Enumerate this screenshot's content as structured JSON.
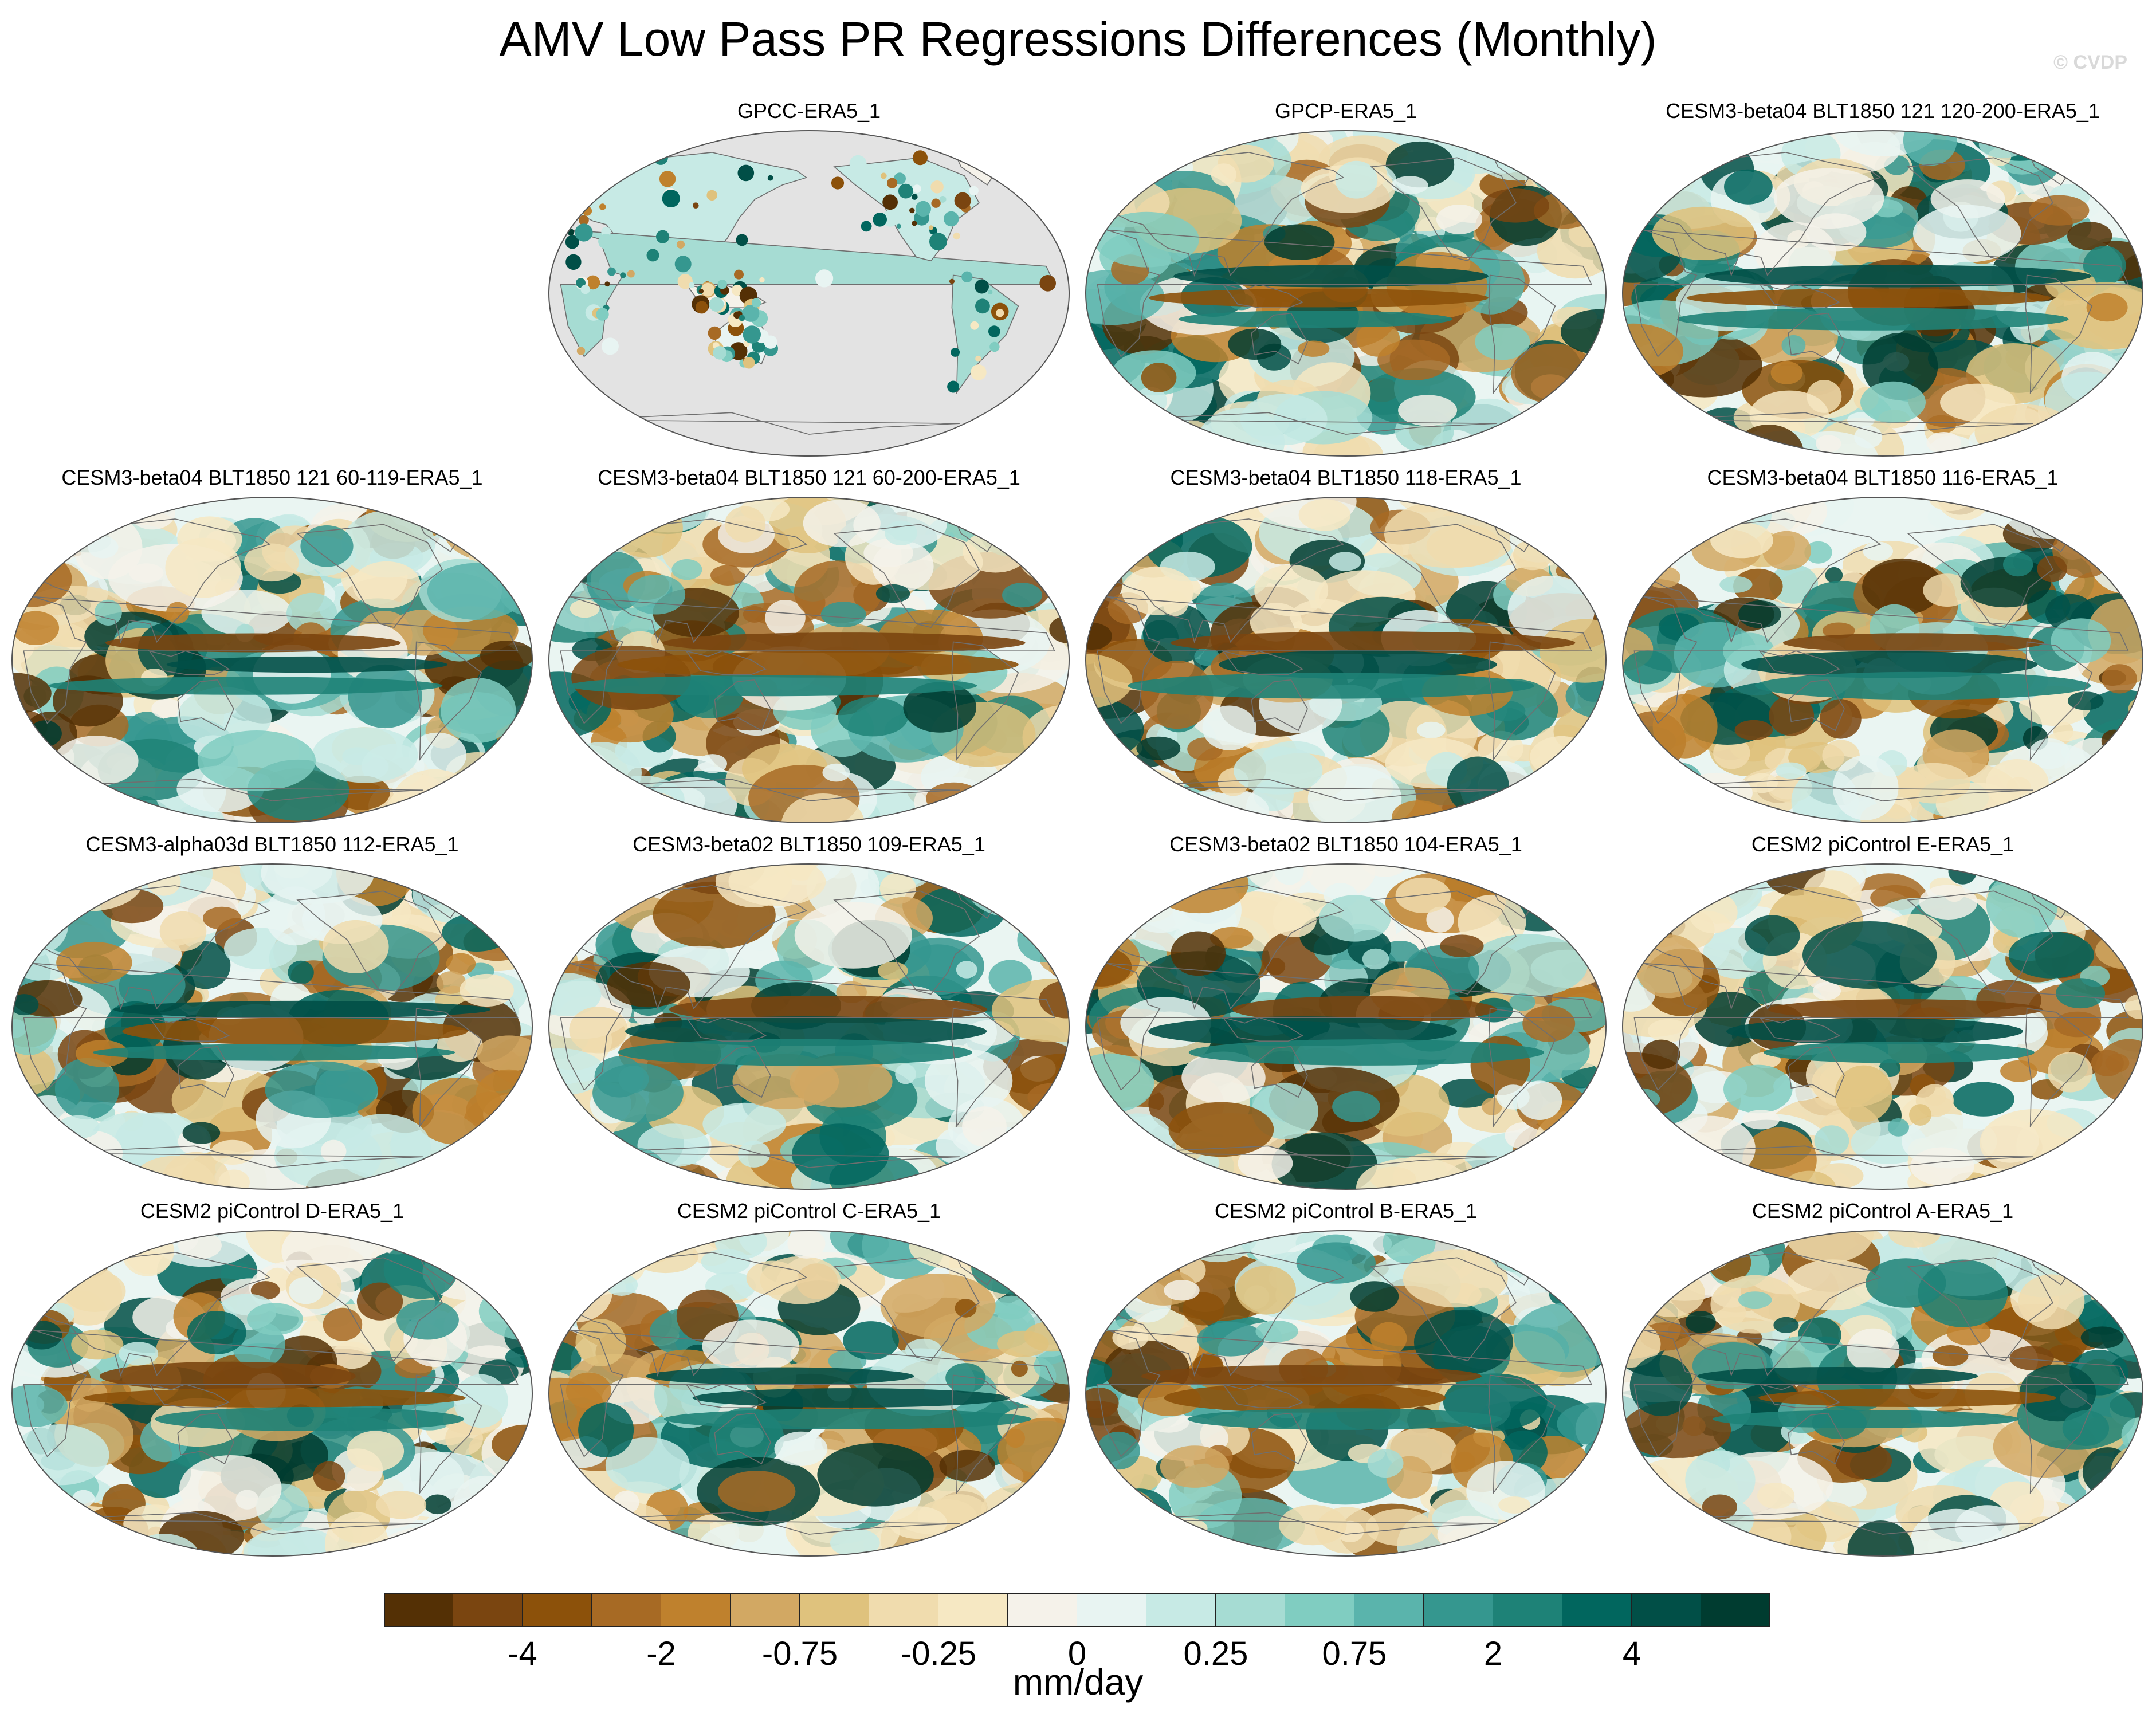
{
  "title": "AMV Low Pass PR Regressions Differences (Monthly)",
  "watermark": "© CVDP",
  "units": "mm/day",
  "colorbar": {
    "colors": [
      "#543005",
      "#7a4510",
      "#8c510a",
      "#a76a24",
      "#bf812d",
      "#d2a863",
      "#dfc27d",
      "#f0dcae",
      "#f6e8c3",
      "#f5f2ea",
      "#e8f4f2",
      "#c7eae5",
      "#a6dcd3",
      "#80cdc1",
      "#5ab4ac",
      "#35978f",
      "#1e8277",
      "#01665e",
      "#014f47",
      "#003c30"
    ],
    "tick_labels": [
      "-4",
      "-2",
      "-0.75",
      "-0.25",
      "0",
      "0.25",
      "0.75",
      "2",
      "4"
    ]
  },
  "chart_data": {
    "type": "heatmap",
    "projection": "Robinson (global, Pacific-centered)",
    "variable": "PR regression difference",
    "units": "mm/day",
    "contour_levels": [
      -5,
      -4,
      -3,
      -2,
      -1,
      -0.75,
      -0.5,
      -0.25,
      -0.1,
      0,
      0.1,
      0.25,
      0.5,
      0.75,
      1,
      2,
      3,
      4,
      5
    ],
    "panels": [
      {
        "label": "GPCC-ERA5_1",
        "land_only": true
      },
      {
        "label": "GPCP-ERA5_1",
        "land_only": false
      },
      {
        "label": "CESM3-beta04 BLT1850 121 120-200-ERA5_1",
        "land_only": false
      },
      {
        "label": "CESM3-beta04 BLT1850 121 60-119-ERA5_1",
        "land_only": false
      },
      {
        "label": "CESM3-beta04 BLT1850 121 60-200-ERA5_1",
        "land_only": false
      },
      {
        "label": "CESM3-beta04 BLT1850 118-ERA5_1",
        "land_only": false
      },
      {
        "label": "CESM3-beta04 BLT1850 116-ERA5_1",
        "land_only": false
      },
      {
        "label": "CESM3-alpha03d BLT1850 112-ERA5_1",
        "land_only": false
      },
      {
        "label": "CESM3-beta02 BLT1850 109-ERA5_1",
        "land_only": false
      },
      {
        "label": "CESM3-beta02 BLT1850 104-ERA5_1",
        "land_only": false
      },
      {
        "label": "CESM2 piControl E-ERA5_1",
        "land_only": false
      },
      {
        "label": "CESM2 piControl D-ERA5_1",
        "land_only": false
      },
      {
        "label": "CESM2 piControl C-ERA5_1",
        "land_only": false
      },
      {
        "label": "CESM2 piControl B-ERA5_1",
        "land_only": false
      },
      {
        "label": "CESM2 piControl A-ERA5_1",
        "land_only": false
      }
    ]
  }
}
